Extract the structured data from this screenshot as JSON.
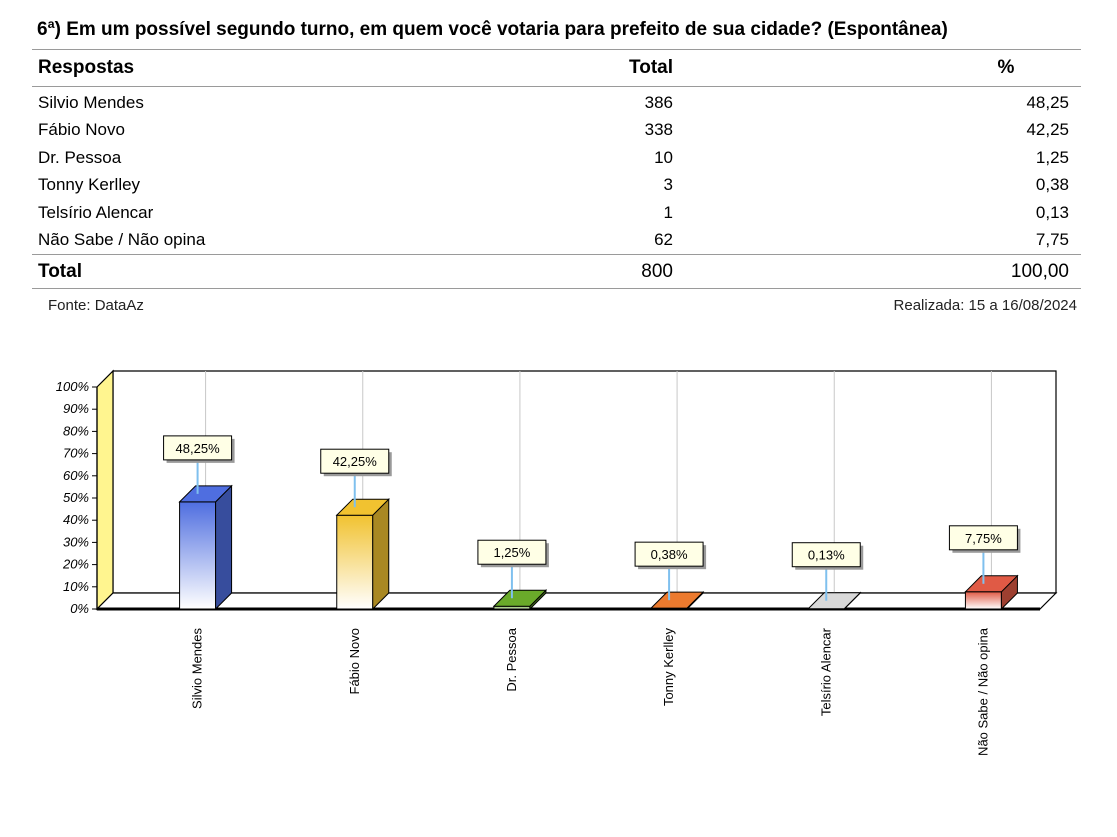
{
  "title": "6ª) Em um possível segundo turno, em quem você votaria para prefeito de sua cidade? (Espontânea)",
  "table": {
    "headers": {
      "resp": "Respostas",
      "total": "Total",
      "pct": "%"
    },
    "rows": [
      {
        "resp": "Silvio Mendes",
        "total": "386",
        "pct": "48,25"
      },
      {
        "resp": "Fábio Novo",
        "total": "338",
        "pct": "42,25"
      },
      {
        "resp": "Dr. Pessoa",
        "total": "10",
        "pct": "1,25"
      },
      {
        "resp": "Tonny Kerlley",
        "total": "3",
        "pct": "0,38"
      },
      {
        "resp": "Telsírio Alencar",
        "total": "1",
        "pct": "0,13"
      },
      {
        "resp": "Não Sabe / Não opina",
        "total": "62",
        "pct": "7,75"
      }
    ],
    "total_row": {
      "resp": "Total",
      "total": "800",
      "pct": "100,00"
    }
  },
  "footer": {
    "source": "Fonte: DataAz",
    "date": "Realizada:  15 a 16/08/2024"
  },
  "chart_data": {
    "type": "bar",
    "categories": [
      "Silvio Mendes",
      "Fábio Novo",
      "Dr. Pessoa",
      "Tonny Kerlley",
      "Telsírio Alencar",
      "Não Sabe / Não opina"
    ],
    "values": [
      48.25,
      42.25,
      1.25,
      0.38,
      0.13,
      7.75
    ],
    "data_labels": [
      "48,25%",
      "42,25%",
      "1,25%",
      "0,38%",
      "0,13%",
      "7,75%"
    ],
    "y_ticks": [
      "0%",
      "10%",
      "20%",
      "30%",
      "40%",
      "50%",
      "60%",
      "70%",
      "80%",
      "90%",
      "100%"
    ],
    "ylim": [
      0,
      100
    ],
    "grid": true,
    "style": "3d",
    "colors": [
      "#4f6ee0",
      "#f1c230",
      "#6aaa2a",
      "#ec7a2e",
      "#d9d9d9",
      "#e05a45"
    ],
    "wall_color": "#fff58f"
  }
}
